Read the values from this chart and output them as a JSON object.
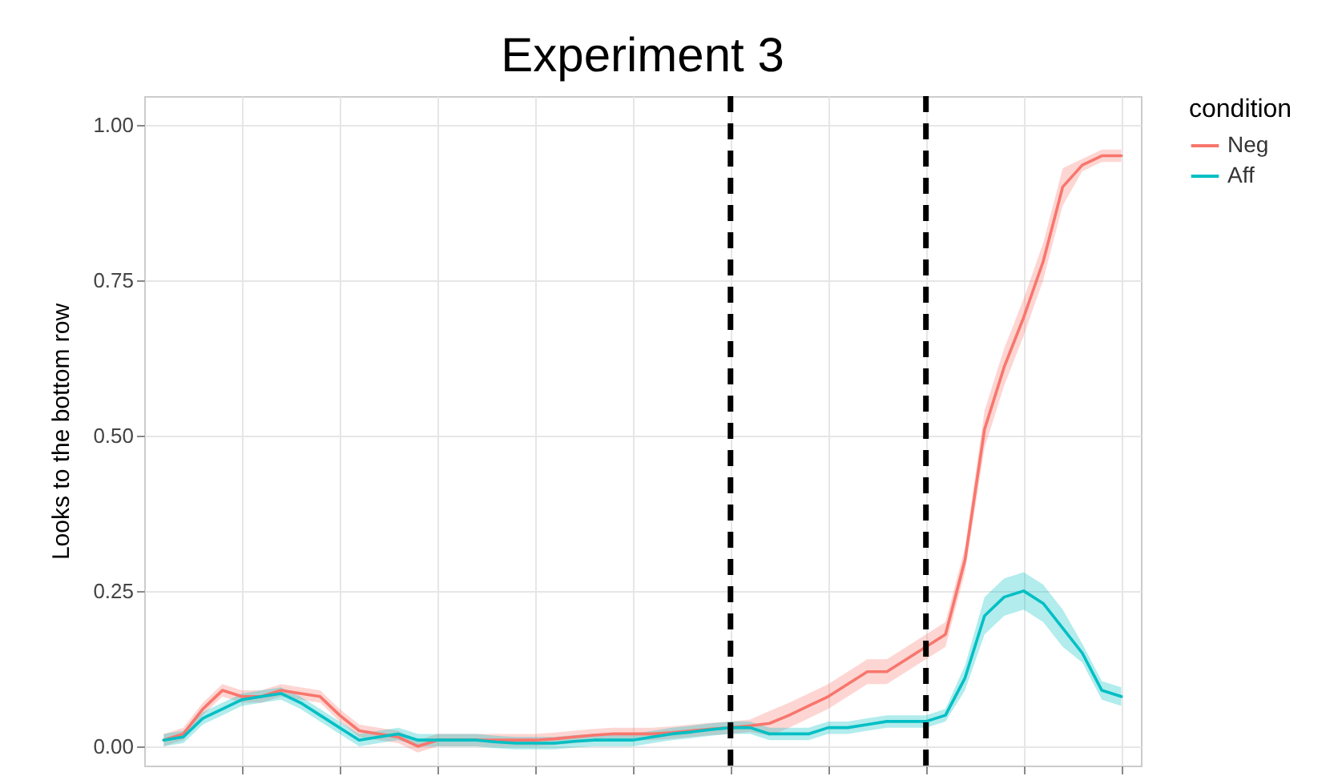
{
  "chart_data": {
    "type": "line",
    "title": "Experiment 3",
    "ylabel": "Looks to the bottom row",
    "legend_title": "condition",
    "categories": [
      null,
      null,
      null,
      null,
      null,
      null,
      null,
      null,
      null,
      null,
      null,
      null,
      null,
      null,
      null,
      null,
      null,
      null,
      null,
      null,
      null,
      null,
      null,
      null,
      null,
      null,
      null,
      null,
      null,
      null,
      null,
      null,
      null,
      null,
      null,
      null,
      null,
      null,
      null,
      null,
      null,
      null,
      null,
      null,
      null,
      null,
      null,
      null,
      null,
      null
    ],
    "ylim": [
      -0.031,
      1.046
    ],
    "yticks": [
      {
        "value": 0,
        "label": "0.00"
      },
      {
        "value": 0.25,
        "label": "0.25"
      },
      {
        "value": 0.5,
        "label": "0.50"
      },
      {
        "value": 0.75,
        "label": "0.75"
      },
      {
        "value": 1,
        "label": "1.00"
      }
    ],
    "tick_labels": "y",
    "grid": true,
    "legend": "right",
    "line_style": "solid",
    "series": [
      {
        "name": "Neg",
        "color": "#f8766d",
        "values": [
          0.01,
          0.02,
          0.06,
          0.09,
          0.08,
          0.08,
          0.09,
          0.085,
          0.08,
          0.05,
          0.025,
          0.02,
          0.015,
          0,
          0.01,
          0.01,
          0.01,
          0.01,
          0.01,
          0.01,
          0.012,
          0.015,
          0.018,
          0.02,
          0.02,
          0.02,
          0.022,
          0.025,
          0.028,
          0.03,
          0.033,
          0.037,
          0.05,
          0.065,
          0.08,
          0.1,
          0.12,
          0.12,
          0.14,
          0.16,
          0.18,
          0.3,
          0.51,
          0.61,
          0.69,
          0.78,
          0.9,
          0.935,
          0.95,
          0.95
        ],
        "lower": [
          0,
          0.01,
          0.05,
          0.08,
          0.07,
          0.07,
          0.08,
          0.075,
          0.07,
          0.04,
          0.015,
          0.01,
          0.005,
          -0.01,
          0,
          0,
          0,
          0,
          0,
          0,
          0.002,
          0.005,
          0.008,
          0.01,
          0.01,
          0.01,
          0.012,
          0.015,
          0.018,
          0.02,
          0.023,
          0.017,
          0.03,
          0.045,
          0.06,
          0.08,
          0.1,
          0.1,
          0.12,
          0.14,
          0.16,
          0.28,
          0.48,
          0.58,
          0.66,
          0.75,
          0.87,
          0.925,
          0.94,
          0.94
        ],
        "upper": [
          0.02,
          0.03,
          0.07,
          0.1,
          0.09,
          0.09,
          0.1,
          0.095,
          0.09,
          0.06,
          0.035,
          0.03,
          0.025,
          0.01,
          0.02,
          0.02,
          0.02,
          0.02,
          0.02,
          0.02,
          0.022,
          0.025,
          0.028,
          0.03,
          0.03,
          0.03,
          0.032,
          0.035,
          0.038,
          0.04,
          0.043,
          0.057,
          0.07,
          0.085,
          0.1,
          0.12,
          0.14,
          0.14,
          0.16,
          0.18,
          0.2,
          0.32,
          0.54,
          0.64,
          0.72,
          0.81,
          0.93,
          0.945,
          0.96,
          0.96
        ]
      },
      {
        "name": "Aff",
        "color": "#00bfc4",
        "values": [
          0.01,
          0.015,
          0.045,
          0.06,
          0.075,
          0.08,
          0.085,
          0.07,
          0.05,
          0.03,
          0.01,
          0.015,
          0.02,
          0.01,
          0.01,
          0.01,
          0.01,
          0.007,
          0.005,
          0.005,
          0.005,
          0.008,
          0.01,
          0.01,
          0.01,
          0.015,
          0.02,
          0.023,
          0.027,
          0.03,
          0.03,
          0.02,
          0.02,
          0.02,
          0.03,
          0.03,
          0.035,
          0.04,
          0.04,
          0.04,
          0.05,
          0.11,
          0.21,
          0.24,
          0.25,
          0.23,
          0.19,
          0.15,
          0.09,
          0.08
        ],
        "lower": [
          0,
          0.005,
          0.035,
          0.05,
          0.065,
          0.07,
          0.075,
          0.06,
          0.04,
          0.02,
          0,
          0.005,
          0.01,
          0,
          0,
          0,
          0,
          -0.003,
          -0.005,
          -0.005,
          -0.005,
          -0.002,
          0,
          0,
          0,
          0.005,
          0.01,
          0.013,
          0.017,
          0.02,
          0.02,
          0.01,
          0.01,
          0.01,
          0.02,
          0.02,
          0.025,
          0.03,
          0.03,
          0.03,
          0.04,
          0.09,
          0.18,
          0.21,
          0.22,
          0.2,
          0.16,
          0.135,
          0.075,
          0.065
        ],
        "upper": [
          0.02,
          0.025,
          0.055,
          0.07,
          0.085,
          0.09,
          0.095,
          0.08,
          0.06,
          0.04,
          0.02,
          0.025,
          0.03,
          0.02,
          0.02,
          0.02,
          0.02,
          0.017,
          0.015,
          0.015,
          0.015,
          0.018,
          0.02,
          0.02,
          0.02,
          0.025,
          0.03,
          0.033,
          0.037,
          0.04,
          0.04,
          0.03,
          0.03,
          0.03,
          0.04,
          0.04,
          0.045,
          0.05,
          0.05,
          0.05,
          0.06,
          0.13,
          0.24,
          0.27,
          0.28,
          0.26,
          0.22,
          0.165,
          0.105,
          0.095
        ]
      }
    ]
  }
}
